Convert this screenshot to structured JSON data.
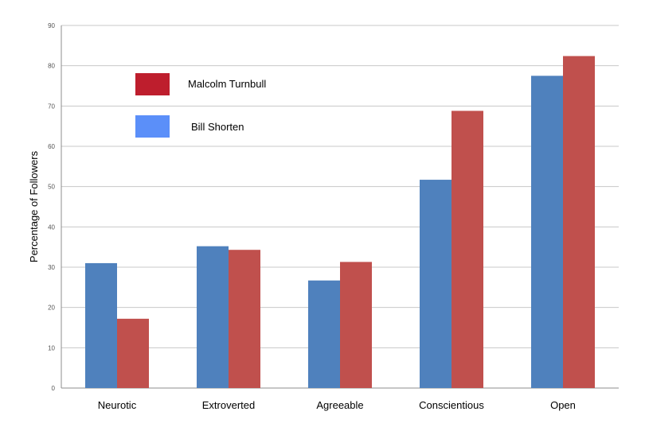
{
  "chart_data": {
    "type": "bar",
    "title": "",
    "xlabel": "",
    "ylabel": "Percentage of Followers",
    "ylim": [
      0,
      90
    ],
    "yticks": [
      0,
      10,
      20,
      30,
      40,
      50,
      60,
      70,
      80,
      90
    ],
    "grid": true,
    "legend_position": "top-left",
    "categories": [
      "Neurotic",
      "Extroverted",
      "Agreeable",
      "Conscientious",
      "Open"
    ],
    "series": [
      {
        "name": "Bill Shorten",
        "color": "#4F81BD",
        "legend_color": "#5B8FF9",
        "values": [
          31,
          35.2,
          26.7,
          51.7,
          77.5
        ]
      },
      {
        "name": "Malcolm Turnbull",
        "color": "#C0504D",
        "legend_color": "#BE1E2D",
        "values": [
          17.2,
          34.3,
          31.3,
          68.8,
          82.4
        ]
      }
    ],
    "legend_order": [
      "Malcolm Turnbull",
      "Bill Shorten"
    ]
  }
}
